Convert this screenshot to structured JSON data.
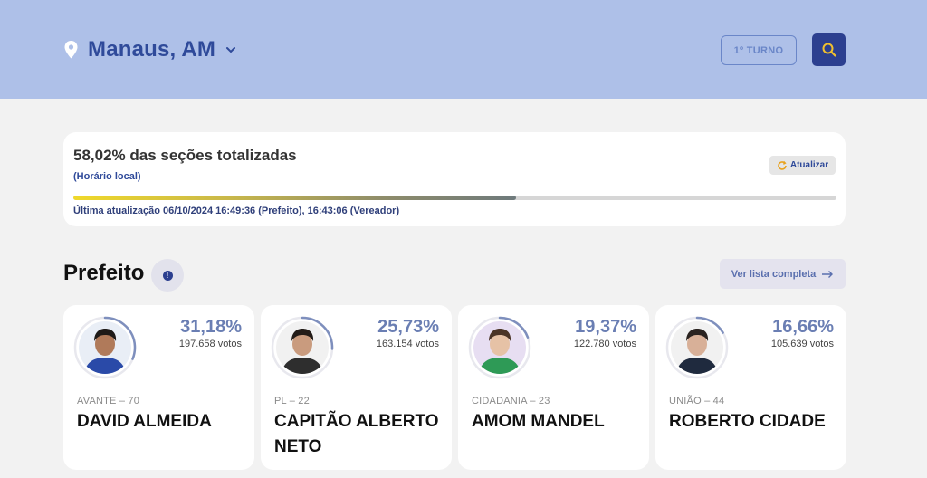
{
  "header": {
    "city": "Manaus, AM",
    "turno_label": "1º TURNO"
  },
  "status": {
    "title": "58,02% das seções totalizadas",
    "subtitle": "(Horário local)",
    "refresh_label": "Atualizar",
    "progress_percent": 58.02,
    "last_update": "Última atualização 06/10/2024 16:49:36 (Prefeito), 16:43:06 (Vereador)"
  },
  "section": {
    "title": "Prefeito",
    "list_label": "Ver lista completa"
  },
  "candidates": [
    {
      "percent": "31,18%",
      "votes": "197.658 votos",
      "party": "AVANTE – 70",
      "name": "DAVID ALMEIDA",
      "share": 0.3118,
      "skin": "#b07a5a",
      "hair": "#1e1a18",
      "shirt": "#2a4aa8",
      "bg": "#e9eef6"
    },
    {
      "percent": "25,73%",
      "votes": "163.154 votos",
      "party": "PL – 22",
      "name": "CAPITÃO ALBERTO NETO",
      "share": 0.2573,
      "skin": "#c99b7e",
      "hair": "#231c18",
      "shirt": "#2e2e2e",
      "bg": "#f1f1f1"
    },
    {
      "percent": "19,37%",
      "votes": "122.780 votos",
      "party": "CIDADANIA – 23",
      "name": "AMOM MANDEL",
      "share": 0.1937,
      "skin": "#e6c2a6",
      "hair": "#4a3426",
      "shirt": "#2e9a56",
      "bg": "#e7def2"
    },
    {
      "percent": "16,66%",
      "votes": "105.639 votos",
      "party": "UNIÃO – 44",
      "name": "ROBERTO CIDADE",
      "share": 0.1666,
      "skin": "#d8b098",
      "hair": "#2a2320",
      "shirt": "#1f2a3e",
      "bg": "#f1f1f1"
    }
  ]
}
